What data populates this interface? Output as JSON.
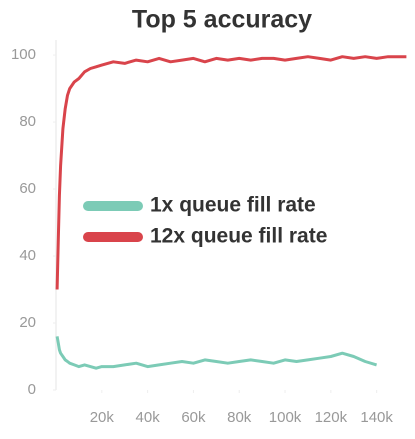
{
  "chart_data": {
    "type": "line",
    "title": "Top 5 accuracy",
    "x": [
      500,
      1000,
      1500,
      2000,
      3000,
      4000,
      5000,
      6000,
      8000,
      10000,
      12500,
      15000,
      17500,
      20000,
      25000,
      30000,
      35000,
      40000,
      45000,
      50000,
      55000,
      60000,
      65000,
      70000,
      75000,
      80000,
      85000,
      90000,
      95000,
      100000,
      105000,
      110000,
      115000,
      120000,
      125000,
      130000,
      135000,
      140000,
      145000,
      150000,
      153000
    ],
    "series": [
      {
        "name": "1x queue fill rate",
        "color": "#7ccbb6",
        "values": [
          16,
          14,
          12,
          11,
          10,
          9,
          8.5,
          8,
          7.5,
          7,
          7.5,
          7,
          6.5,
          7,
          7,
          7.5,
          8,
          7,
          7.5,
          8,
          8.5,
          8,
          9,
          8.5,
          8,
          8.5,
          9,
          8.5,
          8,
          9,
          8.5,
          9,
          9.5,
          10,
          11,
          10,
          8.5,
          7.5,
          null,
          null,
          null
        ]
      },
      {
        "name": "12x queue fill rate",
        "color": "#d9444b",
        "values": [
          30,
          45,
          58,
          67,
          78,
          84,
          88,
          90,
          92,
          93,
          95,
          96,
          96.5,
          97,
          98,
          97.5,
          98.5,
          98,
          99,
          98,
          98.5,
          99,
          98,
          99,
          98.5,
          99,
          98.5,
          99,
          99,
          98.5,
          99,
          99.5,
          99,
          98.5,
          99.5,
          99,
          99.5,
          99,
          99.5,
          99.5,
          99.5
        ]
      }
    ],
    "xlim": [
      0,
      155000
    ],
    "ylim": [
      0,
      104.5
    ],
    "xticks": [
      {
        "value": 20000,
        "label": "20k"
      },
      {
        "value": 40000,
        "label": "40k"
      },
      {
        "value": 60000,
        "label": "60k"
      },
      {
        "value": 80000,
        "label": "80k"
      },
      {
        "value": 100000,
        "label": "100k"
      },
      {
        "value": 120000,
        "label": "120k"
      },
      {
        "value": 140000,
        "label": "140k"
      }
    ],
    "yticks": [
      0,
      20,
      40,
      60,
      80,
      100
    ],
    "grid": false
  }
}
